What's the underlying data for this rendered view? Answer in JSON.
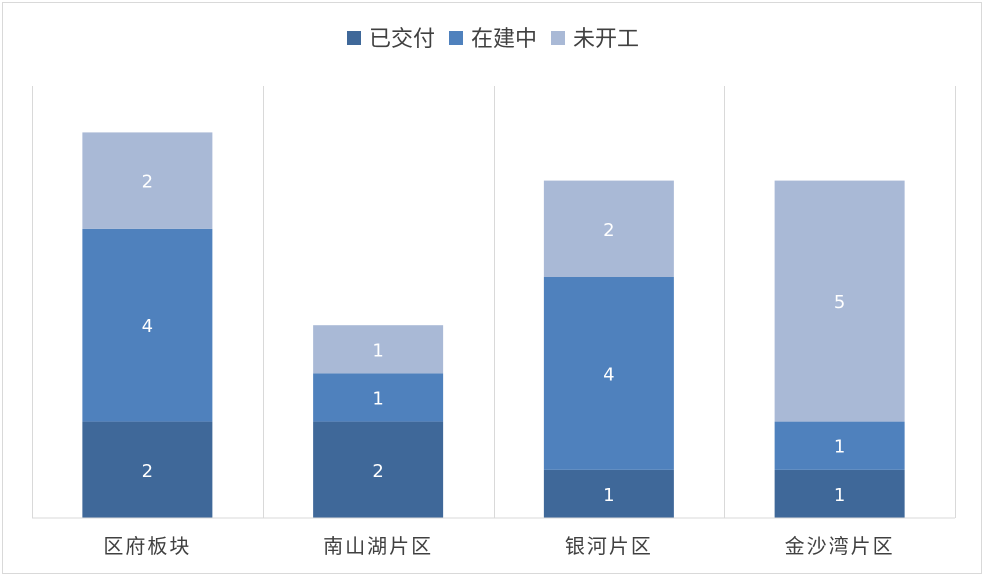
{
  "chart_data": {
    "type": "bar",
    "stacked": true,
    "categories": [
      "区府板块",
      "南山湖片区",
      "银河片区",
      "金沙湾片区"
    ],
    "series": [
      {
        "name": "已交付",
        "color": "#3f6899",
        "values": [
          2,
          2,
          1,
          1
        ]
      },
      {
        "name": "在建中",
        "color": "#4f81bd",
        "values": [
          4,
          1,
          4,
          1
        ]
      },
      {
        "name": "未开工",
        "color": "#a9b9d6",
        "values": [
          2,
          1,
          2,
          5
        ]
      }
    ],
    "ylim": [
      0,
      9
    ],
    "legend_position": "top",
    "grid": "vertical category separators",
    "data_labels": true
  }
}
